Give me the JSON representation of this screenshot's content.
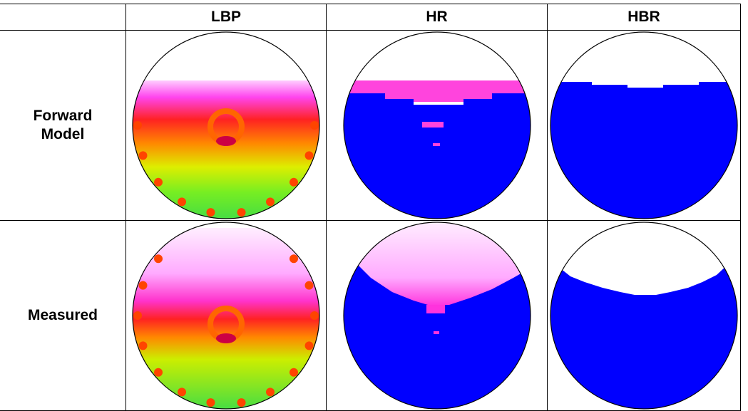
{
  "table": {
    "columns": [
      "LBP",
      "HR",
      "HBR"
    ],
    "rows": [
      {
        "label": "Forward Model"
      },
      {
        "label": "Measured"
      }
    ]
  }
}
